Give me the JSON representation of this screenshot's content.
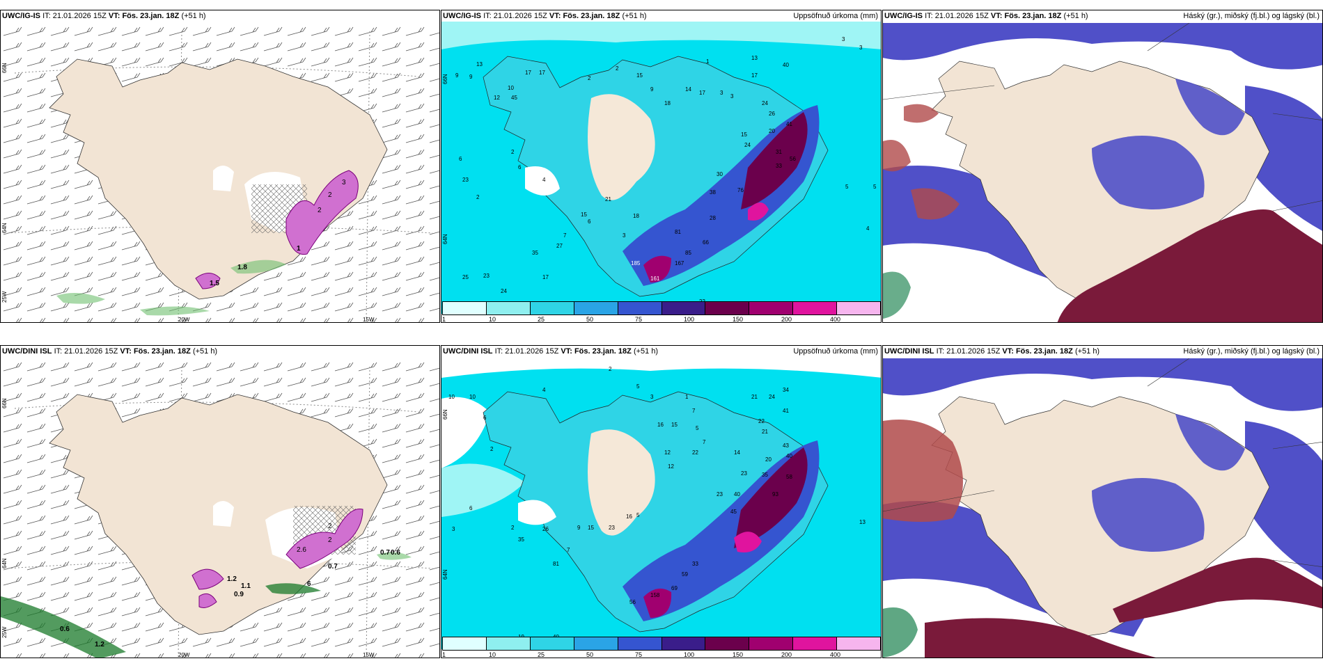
{
  "panels": {
    "row1": {
      "wind": {
        "model": "UWC/IG-IS",
        "it_label": "IT:",
        "it": "21.01.2026 15Z",
        "vt_label": "VT:",
        "vt": "Fös. 23.jan. 18Z",
        "lead": "(+51 h)",
        "lat1": "66N",
        "lat2": "64N",
        "lat3": "25W",
        "lon1": "20W",
        "lon2": "15W",
        "values": [
          "1.5",
          "1.8",
          "1.6",
          "2",
          "2",
          "4",
          "3",
          "3",
          "2",
          "1"
        ]
      },
      "precip": {
        "model": "UWC/IG-IS",
        "it_label": "IT:",
        "it": "21.01.2026 15Z",
        "vt_label": "VT:",
        "vt": "Fös. 23.jan. 18Z",
        "lead": "(+51 h)",
        "title_right": "Uppsöfnuð úrkoma (mm)",
        "lat1": "66N",
        "lat2": "64N",
        "values": [
          "13",
          "9",
          "9",
          "10",
          "12",
          "6",
          "45",
          "17",
          "17",
          "2",
          "2",
          "15",
          "9",
          "18",
          "14",
          "17",
          "3",
          "1",
          "13",
          "17",
          "3",
          "40",
          "3",
          "3",
          "24",
          "26",
          "41",
          "20",
          "15",
          "24",
          "31",
          "33",
          "56",
          "30",
          "38",
          "76",
          "28",
          "5",
          "4",
          "5",
          "2",
          "6",
          "23",
          "2",
          "4",
          "21",
          "18",
          "3",
          "18",
          "15",
          "6",
          "7",
          "27",
          "35",
          "25",
          "23",
          "24",
          "17",
          "25",
          "23",
          "185",
          "167",
          "81",
          "66",
          "85",
          "22",
          "161"
        ]
      },
      "cloud": {
        "model": "UWC/IG-IS",
        "it_label": "IT:",
        "it": "21.01.2026 15Z",
        "vt_label": "VT:",
        "vt": "Fös. 23.jan. 18Z",
        "lead": "(+51 h)",
        "title_right": "Háský (gr.), miðský (fj.bl.) og lágský (bl.)"
      }
    },
    "row2": {
      "wind": {
        "model": "UWC/DINI ISL",
        "it_label": "IT:",
        "it": "21.01.2026 15Z",
        "vt_label": "VT:",
        "vt": "Fös. 23.jan. 18Z",
        "lead": "(+51 h)",
        "lat1": "66N",
        "lat2": "64N",
        "lat3": "25W",
        "lon1": "20W",
        "lon2": "15W",
        "values": [
          "1.2",
          "1.1",
          "0.9",
          "2.6",
          "2",
          "2",
          "0.7",
          "0.7",
          "0.6",
          "0.6",
          "1.2",
          "6"
        ]
      },
      "precip": {
        "model": "UWC/DINI ISL",
        "it_label": "IT:",
        "it": "21.01.2026 15Z",
        "vt_label": "VT:",
        "vt": "Fös. 23.jan. 18Z",
        "lead": "(+51 h)",
        "title_right": "Uppsöfnuð úrkoma (mm)",
        "lat1": "66N",
        "lat2": "64N",
        "values": [
          "2",
          "10",
          "10",
          "4",
          "6",
          "2",
          "5",
          "3",
          "1",
          "21",
          "24",
          "34",
          "41",
          "22",
          "21",
          "43",
          "40",
          "20",
          "23",
          "35",
          "58",
          "93",
          "7",
          "16",
          "15",
          "12",
          "22",
          "5",
          "7",
          "14",
          "13",
          "12",
          "40",
          "45",
          "23",
          "26",
          "6",
          "3",
          "15",
          "23",
          "16",
          "9",
          "5",
          "2",
          "35",
          "19",
          "40",
          "7",
          "81",
          "56",
          "158",
          "69",
          "59",
          "33"
        ]
      },
      "cloud": {
        "model": "UWC/DINI ISL",
        "it_label": "IT:",
        "it": "21.01.2026 15Z",
        "vt_label": "VT:",
        "vt": "Fös. 23.jan. 18Z",
        "lead": "(+51 h)",
        "title_right": "Háský (gr.), miðský (fj.bl.) og lágský (bl.)"
      }
    }
  },
  "colorbar": {
    "ticks": [
      "1",
      "10",
      "25",
      "50",
      "75",
      "100",
      "150",
      "200",
      "400"
    ],
    "colors": [
      "#e0ffff",
      "#8fefef",
      "#2fd4e6",
      "#2aa4e6",
      "#3555d0",
      "#3a1d8a",
      "#6b004c",
      "#a0006f",
      "#e0149e",
      "#f6b5ee"
    ]
  },
  "colors": {
    "land": "#f2e4d4",
    "sea": "#ffffff",
    "precip_sea": "#00e0f0",
    "precip_land": "#f5e8d8",
    "cloud_high": "#7a1a3a",
    "cloud_mid": "#5050c8",
    "cloud_low": "#5b8fe0"
  }
}
